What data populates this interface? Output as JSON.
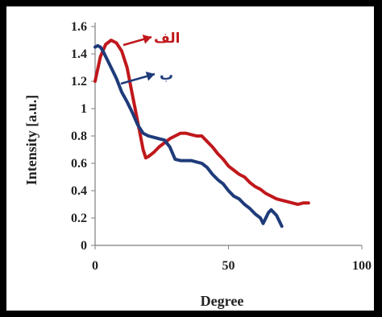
{
  "chart_data": {
    "type": "line",
    "xlabel": "Degree",
    "ylabel": "Intensity [a.u.]",
    "xlim": [
      0,
      100
    ],
    "ylim": [
      0,
      1.6
    ],
    "x_ticks": [
      "0",
      "50",
      "100"
    ],
    "y_ticks": [
      "0",
      "0.2",
      "0.4",
      "0.6",
      "0.8",
      "1",
      "1.2",
      "1.4",
      "1.6"
    ],
    "grid": false,
    "series": [
      {
        "name": "الف",
        "color": "#c0181c",
        "x": [
          0,
          2,
          4,
          6,
          8,
          10,
          12,
          14,
          16,
          18,
          19,
          20,
          22,
          24,
          26,
          28,
          30,
          32,
          34,
          36,
          38,
          40,
          42,
          44,
          46,
          48,
          50,
          52,
          54,
          56,
          58,
          60,
          62,
          64,
          66,
          68,
          70,
          72,
          74,
          76,
          78,
          80
        ],
        "y": [
          1.2,
          1.38,
          1.47,
          1.5,
          1.48,
          1.42,
          1.3,
          1.1,
          0.9,
          0.7,
          0.64,
          0.65,
          0.68,
          0.72,
          0.75,
          0.78,
          0.8,
          0.82,
          0.82,
          0.81,
          0.8,
          0.8,
          0.76,
          0.72,
          0.67,
          0.63,
          0.58,
          0.55,
          0.52,
          0.5,
          0.46,
          0.43,
          0.41,
          0.38,
          0.36,
          0.34,
          0.33,
          0.32,
          0.31,
          0.3,
          0.31,
          0.31
        ]
      },
      {
        "name": "ب",
        "color": "#1f3b7a",
        "x": [
          0,
          1,
          2,
          3,
          4,
          6,
          8,
          10,
          12,
          14,
          16,
          18,
          20,
          22,
          24,
          26,
          28,
          30,
          32,
          34,
          36,
          38,
          40,
          42,
          44,
          46,
          48,
          50,
          52,
          54,
          56,
          58,
          60,
          62,
          63,
          64,
          65,
          66,
          68,
          70
        ],
        "y": [
          1.45,
          1.46,
          1.45,
          1.42,
          1.38,
          1.3,
          1.22,
          1.12,
          1.05,
          0.97,
          0.88,
          0.82,
          0.8,
          0.79,
          0.78,
          0.77,
          0.72,
          0.63,
          0.62,
          0.62,
          0.62,
          0.61,
          0.6,
          0.57,
          0.52,
          0.48,
          0.45,
          0.4,
          0.36,
          0.34,
          0.3,
          0.27,
          0.23,
          0.2,
          0.16,
          0.2,
          0.24,
          0.26,
          0.22,
          0.14
        ]
      }
    ]
  }
}
